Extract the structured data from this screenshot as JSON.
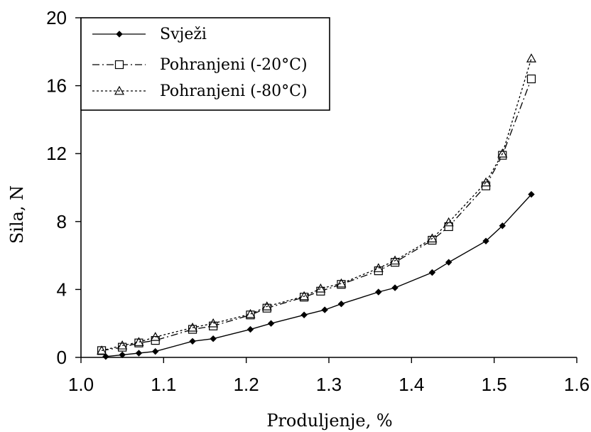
{
  "chart_data": {
    "type": "line",
    "xlabel": "Produljenje, %",
    "ylabel": "Sila, N",
    "xlim": [
      1.0,
      1.6
    ],
    "ylim": [
      0,
      20
    ],
    "xticks": [
      "1.0",
      "1.1",
      "1.2",
      "1.3",
      "1.4",
      "1.5",
      "1.6"
    ],
    "yticks": [
      "0",
      "4",
      "8",
      "12",
      "16",
      "20"
    ],
    "grid": false,
    "legend_position": "top-left",
    "series": [
      {
        "name": "Svježi",
        "marker": "filled-diamond",
        "line_style": "solid",
        "x": [
          1.03,
          1.05,
          1.07,
          1.09,
          1.135,
          1.16,
          1.205,
          1.23,
          1.27,
          1.295,
          1.315,
          1.36,
          1.38,
          1.425,
          1.445,
          1.49,
          1.51,
          1.545
        ],
        "y": [
          0.05,
          0.15,
          0.25,
          0.35,
          0.95,
          1.1,
          1.65,
          2.0,
          2.5,
          2.8,
          3.15,
          3.85,
          4.1,
          5.0,
          5.6,
          6.85,
          7.75,
          9.6
        ]
      },
      {
        "name": "Pohranjeni (-20°C)",
        "marker": "open-square",
        "line_style": "dash-dot",
        "x": [
          1.025,
          1.05,
          1.07,
          1.09,
          1.135,
          1.16,
          1.205,
          1.225,
          1.27,
          1.29,
          1.315,
          1.36,
          1.38,
          1.425,
          1.445,
          1.49,
          1.51,
          1.545
        ],
        "y": [
          0.4,
          0.6,
          0.85,
          1.0,
          1.65,
          1.85,
          2.5,
          2.9,
          3.55,
          3.9,
          4.3,
          5.1,
          5.6,
          6.9,
          7.7,
          10.1,
          11.9,
          16.4
        ]
      },
      {
        "name": "Pohranjeni (-80°C)",
        "marker": "open-triangle",
        "line_style": "dotted",
        "x": [
          1.025,
          1.05,
          1.07,
          1.09,
          1.135,
          1.16,
          1.205,
          1.225,
          1.27,
          1.29,
          1.315,
          1.36,
          1.38,
          1.425,
          1.445,
          1.49,
          1.51,
          1.545
        ],
        "y": [
          0.4,
          0.7,
          0.9,
          1.2,
          1.75,
          2.0,
          2.55,
          3.0,
          3.6,
          4.05,
          4.35,
          5.25,
          5.7,
          7.0,
          7.95,
          10.3,
          12.0,
          17.6
        ]
      }
    ]
  }
}
